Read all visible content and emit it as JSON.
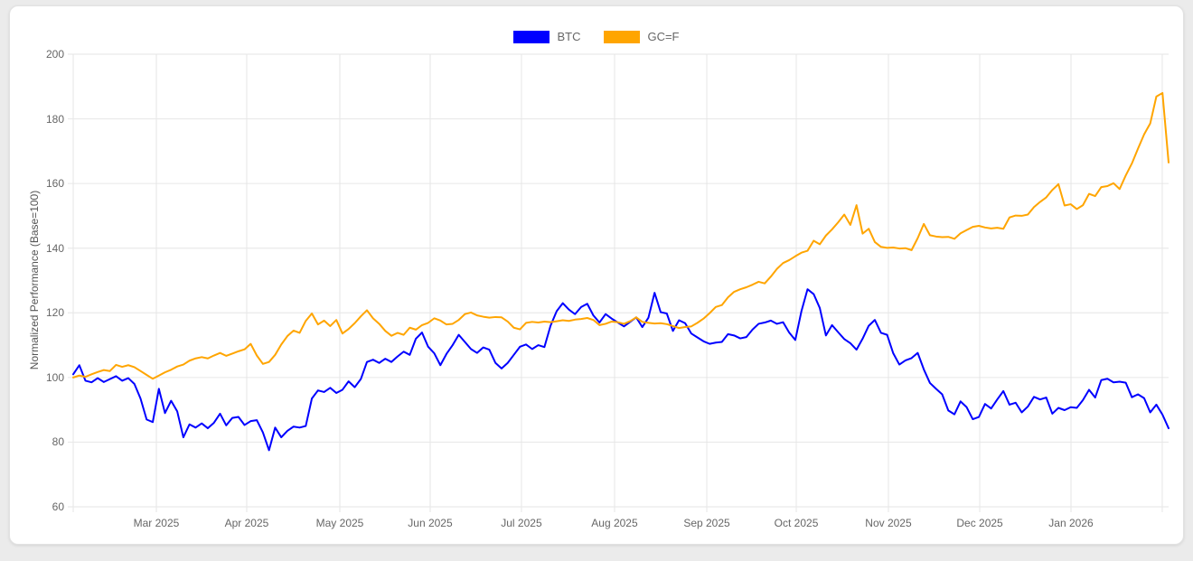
{
  "page": {
    "background": "#ebebeb",
    "card_background": "#ffffff"
  },
  "chart_data": {
    "type": "line",
    "title": "",
    "xlabel": "",
    "ylabel": "Normalized Performance (Base=100)",
    "ylim": [
      60,
      200
    ],
    "y_ticks": [
      60,
      80,
      100,
      120,
      140,
      160,
      180,
      200
    ],
    "x_ticks": [
      {
        "label": "",
        "pos": 0.0
      },
      {
        "label": "Mar 2025",
        "pos": 0.0759
      },
      {
        "label": "Apr 2025",
        "pos": 0.1584
      },
      {
        "label": "May 2025",
        "pos": 0.2434
      },
      {
        "label": "Jun 2025",
        "pos": 0.3259
      },
      {
        "label": "Jul 2025",
        "pos": 0.4092
      },
      {
        "label": "Aug 2025",
        "pos": 0.4942
      },
      {
        "label": "Sep 2025",
        "pos": 0.5784
      },
      {
        "label": "Oct 2025",
        "pos": 0.6601
      },
      {
        "label": "Nov 2025",
        "pos": 0.7442
      },
      {
        "label": "Dec 2025",
        "pos": 0.8276
      },
      {
        "label": "Jan 2026",
        "pos": 0.9109
      },
      {
        "label": "",
        "pos": 0.9942
      }
    ],
    "grid": true,
    "grid_color": "#e6e6e6",
    "tick_text_color": "#666666",
    "legend_position": "top",
    "series": [
      {
        "name": "BTC",
        "color": "#0000ff",
        "values": [
          101.0,
          103.8,
          99.0,
          98.5,
          99.8,
          98.6,
          99.5,
          100.4,
          99.0,
          99.8,
          98.0,
          93.5,
          87.0,
          86.2,
          96.5,
          89.0,
          92.8,
          89.5,
          81.5,
          85.5,
          84.5,
          85.8,
          84.3,
          86.0,
          88.8,
          85.2,
          87.5,
          87.8,
          85.3,
          86.5,
          86.8,
          83.0,
          77.5,
          84.5,
          81.5,
          83.5,
          84.8,
          84.5,
          85.0,
          93.5,
          96.0,
          95.5,
          96.8,
          95.2,
          96.2,
          98.8,
          97.0,
          99.5,
          104.8,
          105.5,
          104.5,
          105.8,
          104.8,
          106.5,
          108.0,
          107.0,
          112.0,
          113.9,
          109.5,
          107.5,
          103.8,
          107.3,
          110.0,
          113.2,
          111.0,
          108.8,
          107.6,
          109.3,
          108.6,
          104.5,
          102.8,
          104.5,
          107.0,
          109.5,
          110.2,
          108.8,
          110.0,
          109.4,
          116.0,
          120.5,
          123.0,
          121.0,
          119.6,
          121.8,
          122.8,
          119.2,
          117.0,
          119.6,
          118.2,
          117.0,
          115.8,
          117.2,
          118.6,
          115.6,
          118.5,
          126.2,
          120.2,
          119.8,
          114.4,
          117.7,
          116.8,
          113.6,
          112.4,
          111.2,
          110.4,
          110.8,
          111.0,
          113.4,
          113.0,
          112.1,
          112.5,
          114.8,
          116.6,
          117.0,
          117.6,
          116.6,
          117.1,
          113.9,
          111.6,
          120.5,
          127.3,
          125.8,
          121.5,
          113.0,
          116.2,
          114.0,
          111.9,
          110.6,
          108.6,
          112.0,
          116.0,
          117.8,
          113.8,
          113.2,
          107.5,
          104.0,
          105.3,
          106.0,
          107.6,
          102.5,
          98.3,
          96.5,
          94.8,
          89.8,
          88.6,
          92.6,
          90.8,
          87.1,
          87.8,
          91.8,
          90.4,
          93.2,
          95.8,
          91.6,
          92.2,
          89.2,
          91.0,
          94.0,
          93.2,
          93.8,
          88.8,
          90.6,
          89.9,
          90.8,
          90.6,
          93.0,
          96.2,
          93.8,
          99.2,
          99.6,
          98.5,
          98.7,
          98.4,
          93.9,
          94.8,
          93.6,
          89.2,
          91.6,
          88.5,
          84.3
        ]
      },
      {
        "name": "GC=F",
        "color": "#ffa500",
        "values": [
          100.0,
          100.6,
          100.2,
          101.0,
          101.7,
          102.3,
          102.0,
          103.9,
          103.3,
          103.8,
          103.2,
          102.0,
          100.8,
          99.6,
          100.6,
          101.6,
          102.4,
          103.4,
          104.0,
          105.2,
          105.9,
          106.3,
          105.9,
          106.8,
          107.6,
          106.7,
          107.4,
          108.1,
          108.7,
          110.4,
          106.8,
          104.2,
          104.8,
          107.0,
          110.2,
          112.8,
          114.5,
          113.8,
          117.5,
          119.8,
          116.4,
          117.6,
          115.9,
          117.8,
          113.6,
          115.0,
          116.8,
          118.9,
          120.8,
          118.3,
          116.6,
          114.4,
          112.9,
          113.8,
          113.2,
          115.4,
          114.8,
          116.2,
          116.9,
          118.3,
          117.6,
          116.4,
          116.6,
          117.8,
          119.6,
          120.1,
          119.2,
          118.8,
          118.5,
          118.7,
          118.6,
          117.3,
          115.4,
          114.9,
          116.9,
          117.2,
          117.0,
          117.3,
          117.1,
          117.4,
          117.7,
          117.5,
          117.9,
          118.1,
          118.4,
          117.8,
          116.2,
          116.6,
          117.3,
          117.1,
          116.6,
          117.4,
          118.6,
          117.2,
          116.9,
          116.7,
          116.8,
          116.5,
          115.9,
          115.3,
          115.6,
          115.8,
          116.9,
          118.2,
          119.9,
          121.8,
          122.4,
          124.8,
          126.5,
          127.3,
          127.9,
          128.7,
          129.6,
          129.1,
          131.2,
          133.6,
          135.4,
          136.3,
          137.5,
          138.6,
          139.2,
          142.3,
          141.2,
          143.9,
          145.8,
          148.0,
          150.4,
          147.2,
          153.3,
          144.5,
          146.0,
          141.9,
          140.4,
          140.1,
          140.2,
          139.9,
          140.0,
          139.4,
          143.1,
          147.5,
          144.0,
          143.6,
          143.4,
          143.5,
          142.9,
          144.6,
          145.6,
          146.6,
          146.9,
          146.4,
          146.1,
          146.3,
          146.0,
          149.5,
          150.1,
          150.0,
          150.4,
          152.7,
          154.3,
          155.7,
          158.0,
          159.8,
          153.2,
          153.6,
          152.1,
          153.3,
          156.8,
          156.1,
          158.9,
          159.2,
          160.1,
          158.3,
          162.5,
          166.2,
          170.8,
          175.2,
          178.6,
          186.9,
          188.0,
          166.5
        ]
      }
    ]
  }
}
